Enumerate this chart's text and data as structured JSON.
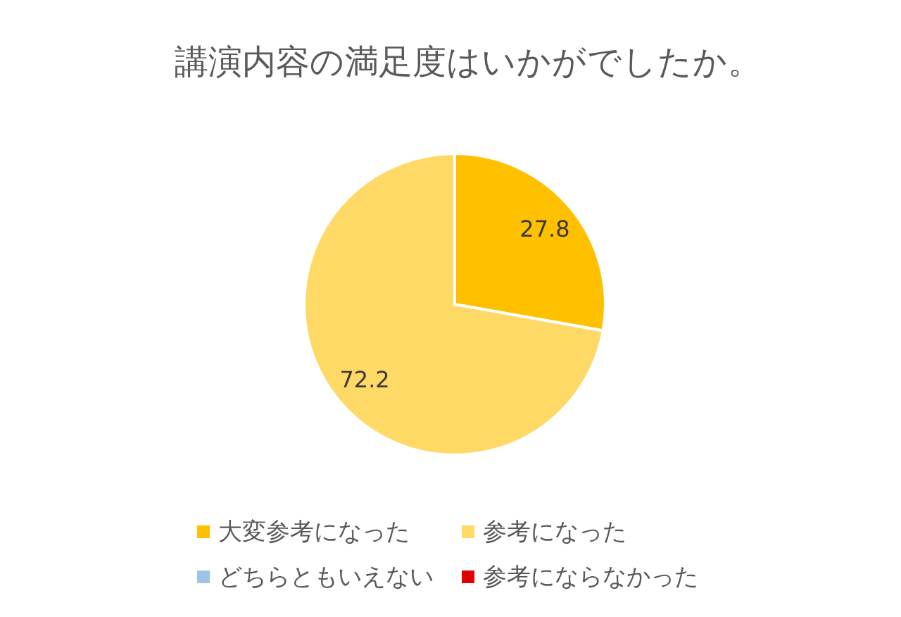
{
  "chart_data": {
    "type": "pie",
    "title": "講演内容の満足度はいかがでしたか。",
    "categories": [
      "大変参考になった",
      "参考になった",
      "どちらともいえない",
      "参考にならなかった"
    ],
    "values": [
      27.8,
      72.2,
      0,
      0
    ],
    "colors": [
      "#ffc000",
      "#ffd966",
      "#9dc3e6",
      "#e00000"
    ],
    "value_labels": [
      "27.8",
      "72.2",
      null,
      null
    ],
    "legend": "bottom"
  }
}
